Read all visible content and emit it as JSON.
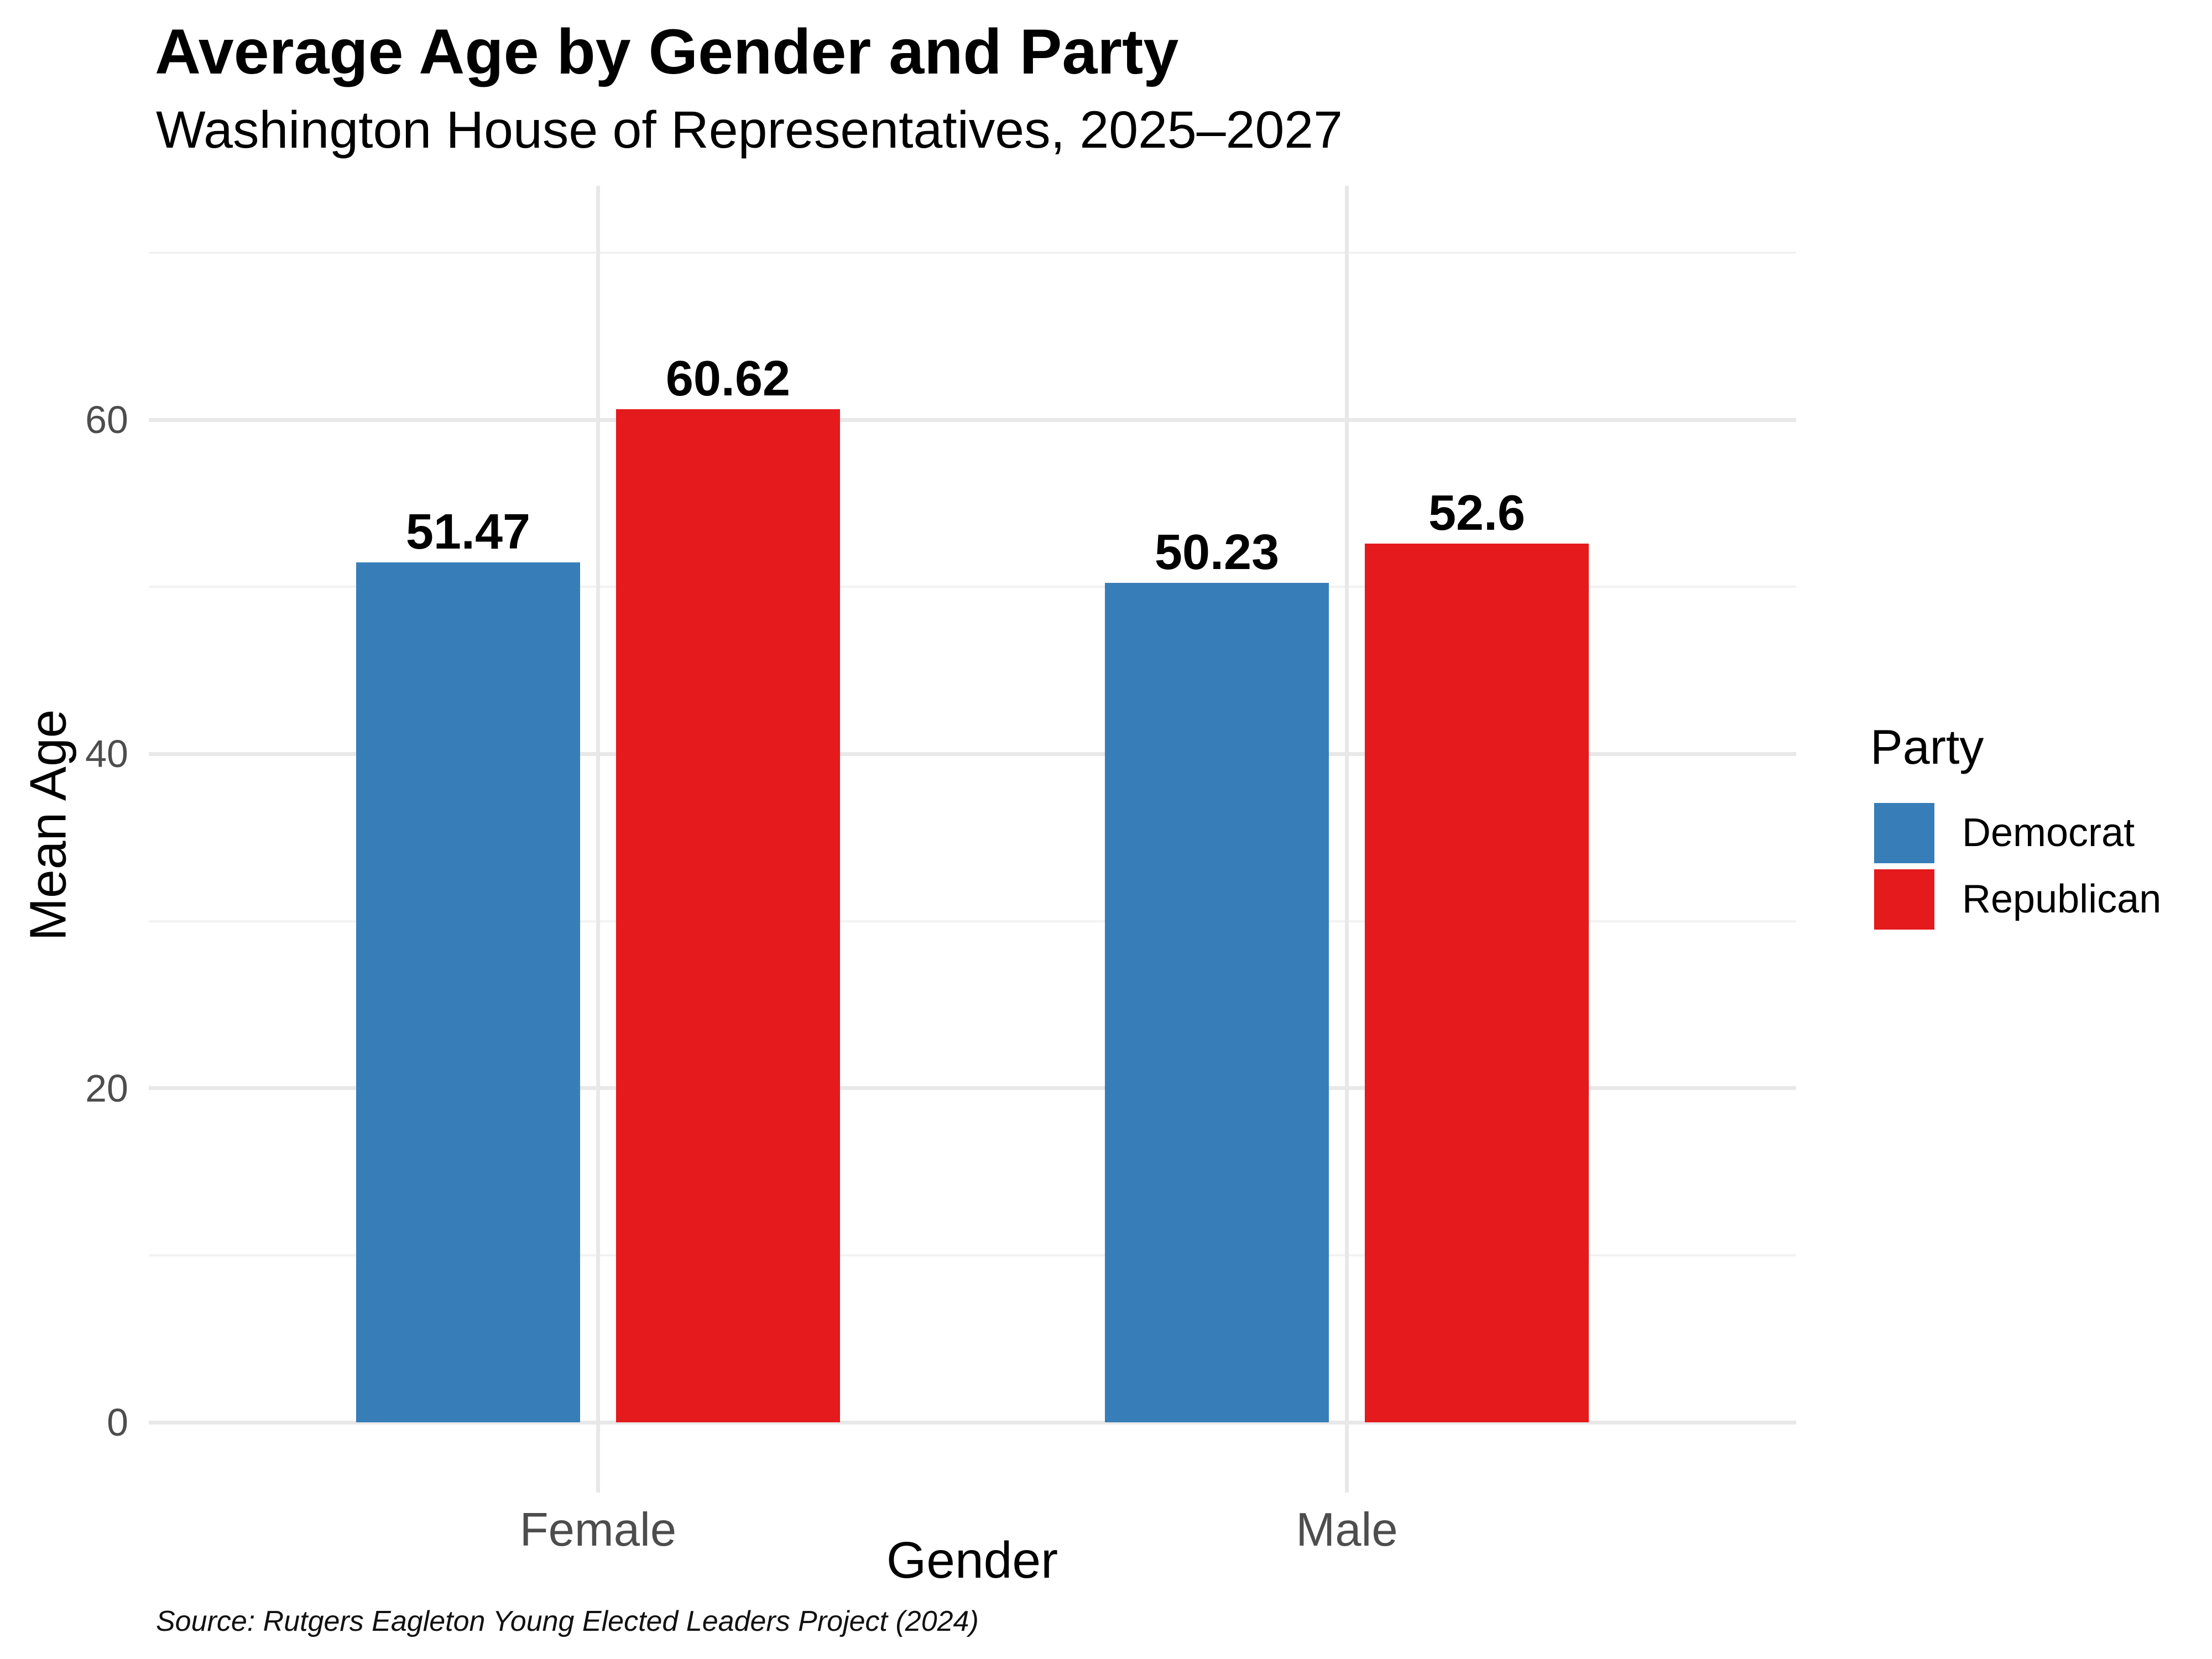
{
  "chart_data": {
    "type": "bar",
    "variant": "grouped-vertical",
    "title": "Average Age by Gender and Party",
    "subtitle": "Washington House of Representatives, 2025–2027",
    "source_note": "Source: Rutgers Eagleton Young Elected Leaders Project (2024)",
    "xlabel": "Gender",
    "ylabel": "Mean Age",
    "categories": [
      "Female",
      "Male"
    ],
    "series": [
      {
        "name": "Democrat",
        "color": "#377EB8",
        "values": [
          51.47,
          50.23
        ],
        "labels": [
          "51.47",
          "50.23"
        ]
      },
      {
        "name": "Republican",
        "color": "#E41A1C",
        "values": [
          60.62,
          52.6
        ],
        "labels": [
          "60.62",
          "52.6"
        ]
      }
    ],
    "y_axis": {
      "major_ticks": [
        0,
        20,
        40,
        60
      ],
      "minor_gridlines": [
        10,
        30,
        50,
        70
      ],
      "lim": [
        -4.2,
        74.0
      ]
    },
    "legend": {
      "title": "Party",
      "position": "right",
      "entries": [
        "Democrat",
        "Republican"
      ]
    },
    "grid": {
      "horizontal": "major+minor",
      "vertical": "major-at-category-centers",
      "background": "white"
    }
  },
  "colors": {
    "background": "#FFFFFF",
    "democrat": "#377EB8",
    "republican": "#E41A1C",
    "grid_major": "#E8E8E8",
    "grid_minor": "#F2F2F2",
    "axis_text": "#4D4D4D",
    "text": "#000000"
  }
}
